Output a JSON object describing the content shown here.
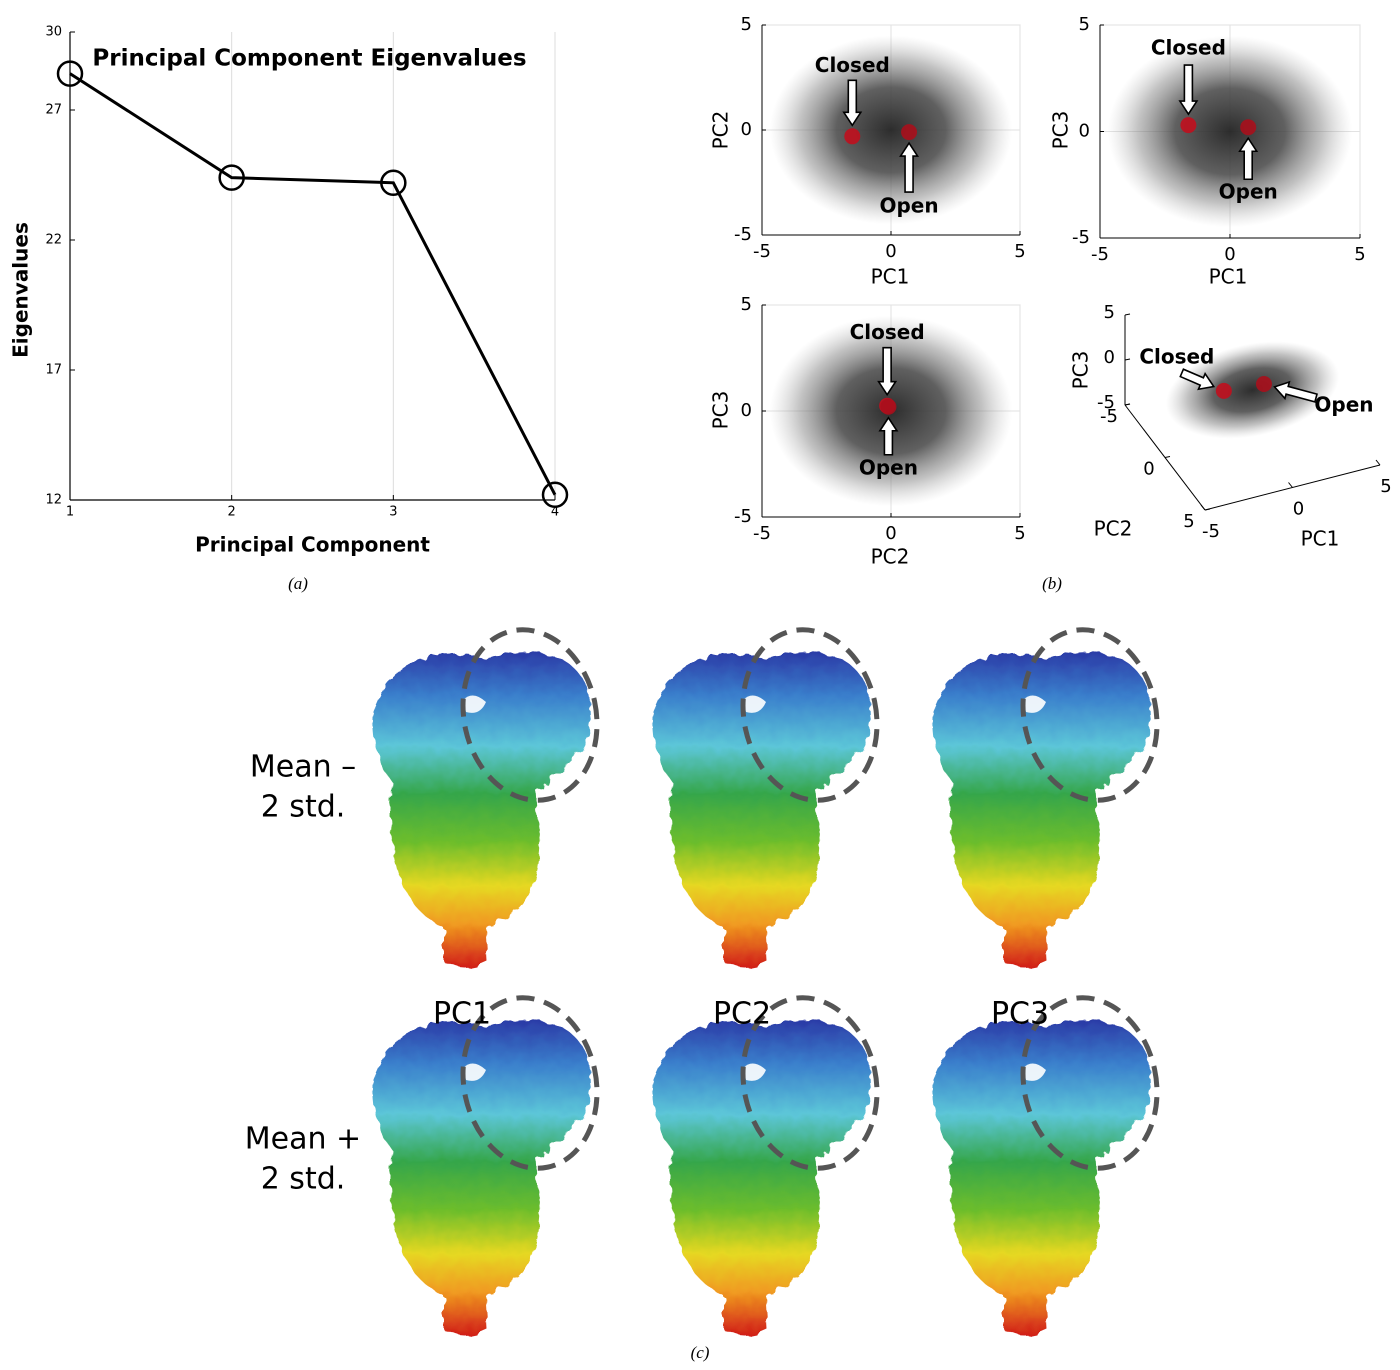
{
  "chart_data": [
    {
      "type": "line",
      "title": "Principal Component Eigenvalues",
      "x_label": "Principal Component",
      "y_label": "Eigenvalues",
      "x": [
        1,
        2,
        3,
        4
      ],
      "values": [
        28.4,
        24.4,
        24.2,
        12.2
      ],
      "color": "#000000",
      "xlim": [
        1,
        4
      ],
      "xticks": [
        1,
        2,
        3,
        4
      ],
      "ylim": [
        12,
        30
      ],
      "yticks": [
        12,
        17,
        22,
        27,
        30
      ],
      "grid": true
    },
    {
      "type": "scatter",
      "x_label": "PC1",
      "y_label": "PC2",
      "xlim": [
        -5,
        5
      ],
      "xticks": [
        -5,
        0,
        5
      ],
      "ylim": [
        -5,
        5
      ],
      "yticks": [
        -5,
        0,
        5
      ],
      "grid": true,
      "series": [
        {
          "name": "Closed",
          "color": "#c0101e",
          "x": [
            -1.5
          ],
          "values": [
            -0.3
          ]
        },
        {
          "name": "Open",
          "color": "#a8101c",
          "x": [
            0.7
          ],
          "values": [
            -0.1
          ]
        }
      ]
    },
    {
      "type": "scatter",
      "x_label": "PC1",
      "y_label": "PC3",
      "xlim": [
        -5,
        5
      ],
      "xticks": [
        -5,
        0,
        5
      ],
      "ylim": [
        -5,
        5
      ],
      "yticks": [
        -5,
        0,
        5
      ],
      "grid": true,
      "series": [
        {
          "name": "Closed",
          "color": "#c0101e",
          "x": [
            -1.6
          ],
          "values": [
            0.3
          ]
        },
        {
          "name": "Open",
          "color": "#a8101c",
          "x": [
            0.7
          ],
          "values": [
            0.2
          ]
        }
      ]
    },
    {
      "type": "scatter",
      "x_label": "PC2",
      "y_label": "PC3",
      "xlim": [
        -5,
        5
      ],
      "xticks": [
        -5,
        0,
        5
      ],
      "ylim": [
        -5,
        5
      ],
      "yticks": [
        -5,
        0,
        5
      ],
      "grid": true,
      "series": [
        {
          "name": "Closed",
          "color": "#c0101e",
          "x": [
            -0.15
          ],
          "values": [
            0.25
          ]
        },
        {
          "name": "Open",
          "color": "#a8101c",
          "x": [
            -0.1
          ],
          "values": [
            0.2
          ]
        }
      ]
    },
    {
      "type": "scatter3d",
      "x_label": "PC1",
      "y_label": "PC2",
      "z_label": "PC3",
      "xlim": [
        -5,
        5
      ],
      "xticks": [
        -5,
        0,
        5
      ],
      "ylim": [
        -5,
        5
      ],
      "yticks": [
        -5,
        0,
        5
      ],
      "zlim": [
        -5,
        5
      ],
      "zticks": [
        -5,
        0,
        5
      ],
      "series": [
        {
          "name": "Closed",
          "color": "#c0101e",
          "x": [
            -1.5
          ],
          "y": [
            -0.3
          ],
          "values": [
            0.3
          ]
        },
        {
          "name": "Open",
          "color": "#a8101c",
          "x": [
            0.7
          ],
          "y": [
            -0.1
          ],
          "values": [
            0.2
          ]
        }
      ]
    }
  ],
  "panel_labels": [
    "(a)",
    "(b)",
    "(c)"
  ],
  "maps": {
    "columns": [
      "PC1",
      "PC2",
      "PC3"
    ],
    "rows": [
      [
        "Mean –",
        "2 std."
      ],
      [
        "Mean +",
        "2 std."
      ]
    ]
  }
}
